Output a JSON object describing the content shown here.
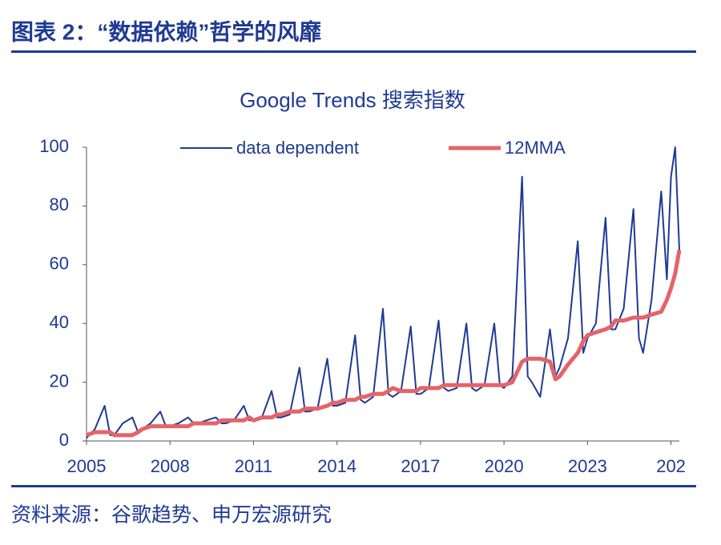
{
  "header": {
    "title": "图表 2：“数据依赖”哲学的风靡"
  },
  "chart_data": {
    "type": "line",
    "title": "Google Trends 搜索指数",
    "x": [
      2005,
      2005.3,
      2005.65,
      2005.85,
      2006,
      2006.3,
      2006.65,
      2006.85,
      2007,
      2007.3,
      2007.65,
      2007.85,
      2008,
      2008.3,
      2008.65,
      2008.85,
      2009,
      2009.3,
      2009.65,
      2009.85,
      2010,
      2010.3,
      2010.65,
      2010.85,
      2011,
      2011.3,
      2011.65,
      2011.85,
      2012,
      2012.3,
      2012.65,
      2012.85,
      2013,
      2013.3,
      2013.65,
      2013.85,
      2014,
      2014.3,
      2014.65,
      2014.85,
      2015,
      2015.3,
      2015.65,
      2015.85,
      2016,
      2016.3,
      2016.65,
      2016.85,
      2017,
      2017.3,
      2017.65,
      2017.85,
      2018,
      2018.3,
      2018.65,
      2018.85,
      2019,
      2019.3,
      2019.65,
      2019.85,
      2020,
      2020.3,
      2020.65,
      2020.85,
      2021,
      2021.3,
      2021.65,
      2021.85,
      2022,
      2022.3,
      2022.65,
      2022.85,
      2023,
      2023.3,
      2023.65,
      2023.85,
      2024,
      2024.3,
      2024.65,
      2024.85,
      2025,
      2025.3,
      2025.65,
      2025.85,
      2026,
      2026.15,
      2026.3
    ],
    "series": [
      {
        "name": "data dependent",
        "color": "#1f3a93",
        "width": 2,
        "values": [
          1,
          4,
          12,
          2,
          2,
          6,
          8,
          3,
          4,
          6,
          10,
          5,
          5,
          6,
          8,
          6,
          6,
          7,
          8,
          6,
          6,
          7,
          12,
          7,
          7,
          8,
          17,
          8,
          8,
          9,
          25,
          10,
          10,
          11,
          28,
          12,
          12,
          13,
          36,
          14,
          13,
          15,
          45,
          16,
          15,
          17,
          39,
          16,
          16,
          18,
          41,
          18,
          17,
          18,
          40,
          18,
          17,
          19,
          40,
          19,
          18,
          22,
          90,
          22,
          20,
          15,
          38,
          22,
          25,
          35,
          68,
          30,
          35,
          40,
          76,
          38,
          38,
          45,
          79,
          35,
          30,
          48,
          85,
          55,
          90,
          100,
          65
        ]
      },
      {
        "name": "12MMA",
        "color": "#e5636a",
        "width": 5,
        "values": [
          2,
          3,
          3,
          3,
          2,
          2,
          2,
          3,
          4,
          5,
          5,
          5,
          5,
          5,
          5,
          6,
          6,
          6,
          6,
          7,
          7,
          7,
          7,
          8,
          7,
          8,
          8,
          9,
          9,
          10,
          10,
          11,
          11,
          11,
          12,
          13,
          13,
          14,
          14,
          15,
          15,
          16,
          16,
          17,
          18,
          17,
          17,
          17,
          18,
          18,
          18,
          19,
          19,
          19,
          19,
          19,
          19,
          19,
          19,
          19,
          19,
          20,
          27,
          28,
          28,
          28,
          27,
          21,
          22,
          26,
          30,
          34,
          36,
          37,
          38,
          39,
          41,
          41,
          42,
          42,
          42,
          43,
          44,
          48,
          52,
          57,
          65
        ]
      }
    ],
    "xlim": [
      2005,
      2026.3
    ],
    "xticks": [
      2005,
      2008,
      2011,
      2014,
      2017,
      2020,
      2023,
      {
        "value": 2026,
        "label": "202"
      }
    ],
    "ylim": [
      0,
      100
    ],
    "yticks": [
      0,
      20,
      40,
      60,
      80,
      100
    ],
    "grid": false
  },
  "footer": {
    "source": "资料来源：谷歌趋势、申万宏源研究"
  }
}
